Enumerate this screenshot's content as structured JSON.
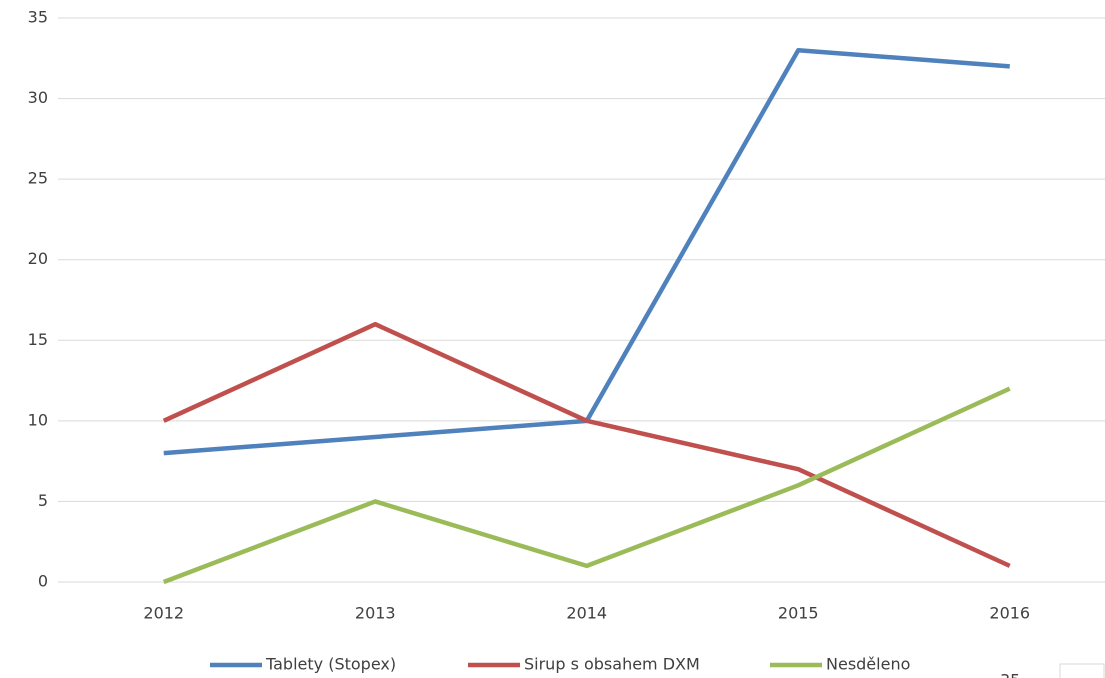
{
  "chart_data": {
    "type": "line",
    "categories": [
      "2012",
      "2013",
      "2014",
      "2015",
      "2016"
    ],
    "series": [
      {
        "name": "Tablety (Stopex)",
        "color": "#4f81bd",
        "values": [
          8,
          9,
          10,
          33,
          32
        ]
      },
      {
        "name": "Sirup s obsahem DXM",
        "color": "#c0504d",
        "values": [
          10,
          16,
          10,
          7,
          1
        ]
      },
      {
        "name": "Nesděleno",
        "color": "#9bbb59",
        "values": [
          0,
          5,
          1,
          6,
          12
        ]
      }
    ],
    "ylim": [
      0,
      35
    ],
    "yticks": [
      0,
      5,
      10,
      15,
      20,
      25,
      30,
      35
    ],
    "grid": true,
    "legend": "bottom"
  },
  "page_number": "35"
}
